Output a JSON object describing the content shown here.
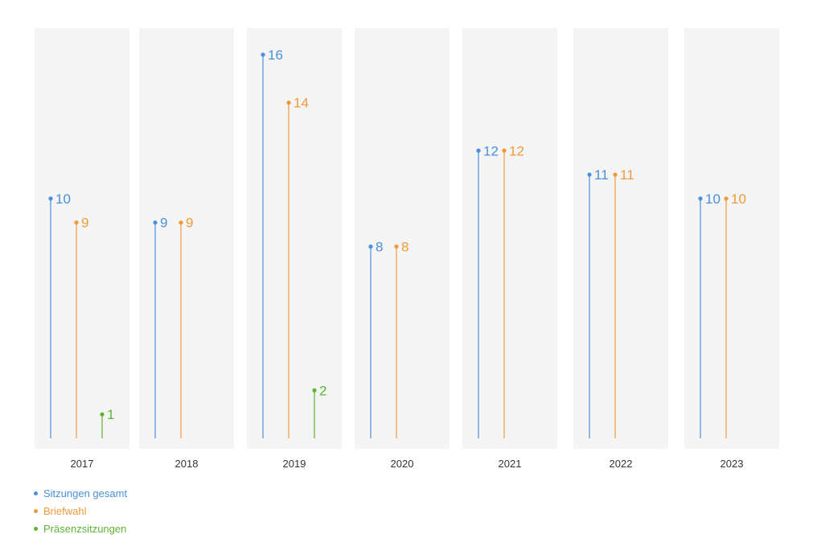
{
  "chart_data": {
    "type": "lollipop",
    "categories": [
      "2017",
      "2018",
      "2019",
      "2020",
      "2021",
      "2022",
      "2023"
    ],
    "series": [
      {
        "name": "Sitzungen gesamt",
        "color": "#4a90d9",
        "values": [
          10,
          9,
          16,
          8,
          12,
          11,
          10
        ]
      },
      {
        "name": "Briefwahl",
        "color": "#ee9a3a",
        "values": [
          9,
          9,
          14,
          8,
          12,
          11,
          10
        ]
      },
      {
        "name": "Präsenzsitzungen",
        "color": "#5db336",
        "values": [
          1,
          null,
          2,
          null,
          null,
          null,
          null
        ]
      }
    ],
    "value_labels": [
      [
        "10",
        "9",
        "16",
        "8",
        "12",
        "11",
        "10"
      ],
      [
        "9",
        "9",
        "14",
        "8",
        "12",
        "11",
        "10"
      ],
      [
        "1",
        "",
        "2",
        "",
        "",
        "",
        ""
      ]
    ],
    "ylim": [
      0,
      16
    ],
    "grid": false,
    "legend_position": "bottom-left",
    "panel_color": "#f4f4f4"
  }
}
